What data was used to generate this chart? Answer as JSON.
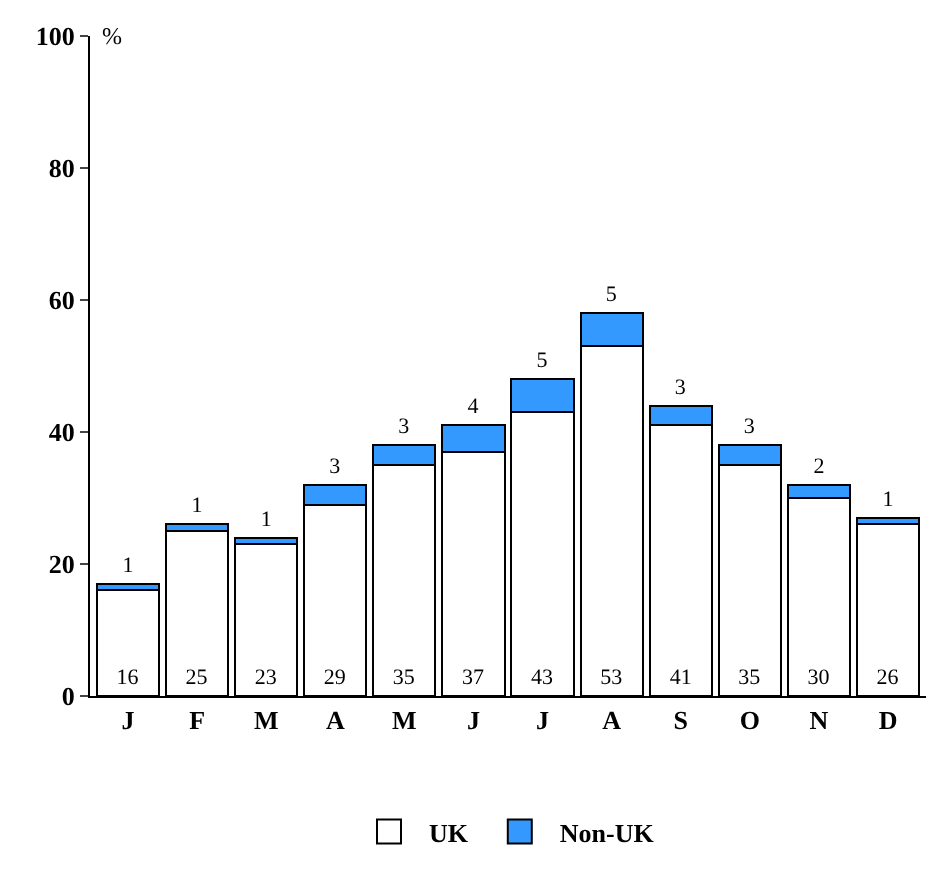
{
  "chart_data": {
    "type": "bar",
    "ylabel": "%",
    "categories": [
      "J",
      "F",
      "M",
      "A",
      "M",
      "J",
      "J",
      "A",
      "S",
      "O",
      "N",
      "D"
    ],
    "stacked": true,
    "data_labels": true,
    "ylim": [
      0,
      100
    ],
    "yticks": [
      0,
      20,
      40,
      60,
      80,
      100
    ],
    "grid": false,
    "legend": "bottom",
    "series": [
      {
        "name": "UK",
        "color": "#ffffff",
        "values": [
          16,
          25,
          23,
          29,
          35,
          37,
          43,
          53,
          41,
          35,
          30,
          26
        ]
      },
      {
        "name": "Non-UK",
        "color": "#3399ff",
        "values": [
          1,
          1,
          1,
          3,
          3,
          4,
          5,
          5,
          3,
          3,
          2,
          1
        ]
      }
    ]
  }
}
